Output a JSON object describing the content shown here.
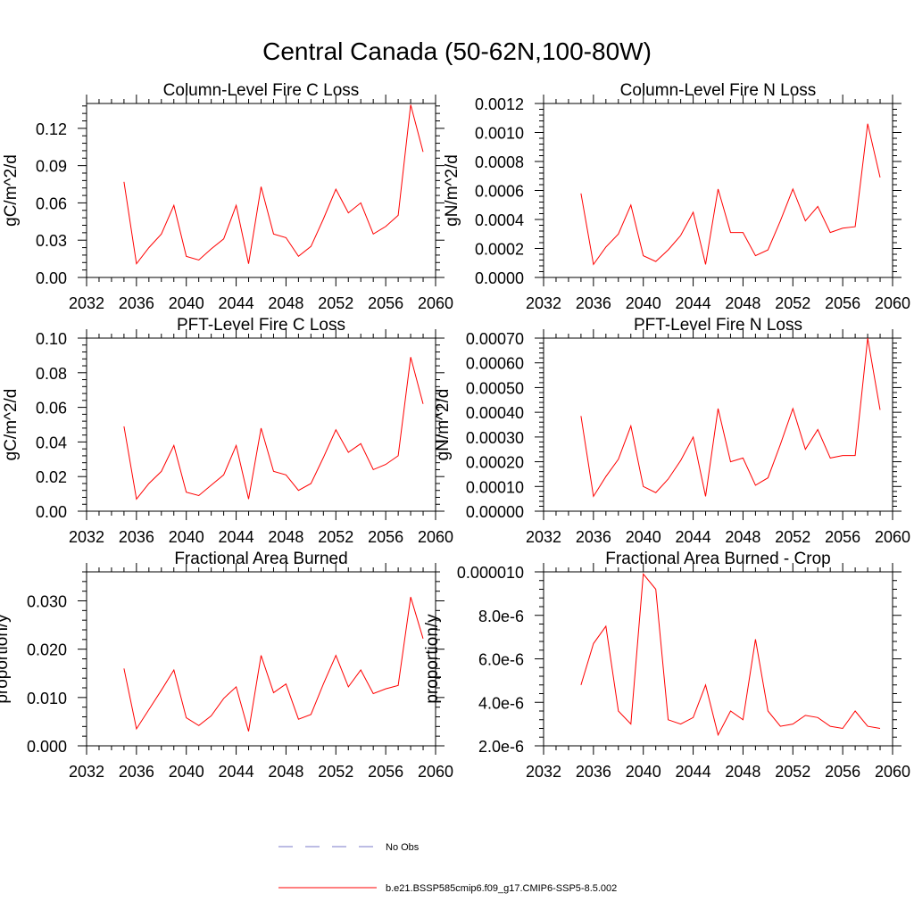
{
  "figure": {
    "title": "Central Canada (50-62N,100-80W)"
  },
  "series_color": "#ff0000",
  "legend": {
    "items": [
      {
        "label": "No Obs",
        "color": "#7878c8",
        "dash": "dashed"
      },
      {
        "label": "b.e21.BSSP585cmip6.f09_g17.CMIP6-SSP5-8.5.002",
        "color": "#ff0000",
        "dash": "solid"
      }
    ]
  },
  "chart_data": [
    {
      "type": "line",
      "title": "Column-Level Fire C Loss",
      "ylabel": "gC/m^2/d",
      "xlim": [
        2032,
        2060
      ],
      "ylim": [
        0,
        0.14
      ],
      "x_ticks": [
        "2032",
        "2036",
        "2040",
        "2044",
        "2048",
        "2052",
        "2056",
        "2060"
      ],
      "y_ticks": [
        {
          "v": 0,
          "label": "0.00"
        },
        {
          "v": 0.03,
          "label": "0.03"
        },
        {
          "v": 0.06,
          "label": "0.06"
        },
        {
          "v": 0.09,
          "label": "0.09"
        },
        {
          "v": 0.12,
          "label": "0.12"
        }
      ],
      "x": [
        2035,
        2036,
        2037,
        2038,
        2039,
        2040,
        2041,
        2042,
        2043,
        2044,
        2045,
        2046,
        2047,
        2048,
        2049,
        2050,
        2051,
        2052,
        2053,
        2054,
        2055,
        2056,
        2057,
        2058,
        2059
      ],
      "series": [
        {
          "values": [
            0.077,
            0.011,
            0.024,
            0.035,
            0.058,
            0.017,
            0.014,
            0.023,
            0.031,
            0.058,
            0.011,
            0.073,
            0.035,
            0.032,
            0.017,
            0.025,
            0.047,
            0.071,
            0.052,
            0.06,
            0.035,
            0.041,
            0.05,
            0.139,
            0.101
          ]
        }
      ]
    },
    {
      "type": "line",
      "title": "Column-Level Fire N Loss",
      "ylabel": "gN/m^2/d",
      "xlim": [
        2032,
        2060
      ],
      "ylim": [
        0,
        0.0012
      ],
      "x_ticks": [
        "2032",
        "2036",
        "2040",
        "2044",
        "2048",
        "2052",
        "2056",
        "2060"
      ],
      "y_ticks": [
        {
          "v": 0,
          "label": "0.0000"
        },
        {
          "v": 0.0002,
          "label": "0.0002"
        },
        {
          "v": 0.0004,
          "label": "0.0004"
        },
        {
          "v": 0.0006,
          "label": "0.0006"
        },
        {
          "v": 0.0008,
          "label": "0.0008"
        },
        {
          "v": 0.001,
          "label": "0.0010"
        },
        {
          "v": 0.0012,
          "label": "0.0012"
        }
      ],
      "x": [
        2035,
        2036,
        2037,
        2038,
        2039,
        2040,
        2041,
        2042,
        2043,
        2044,
        2045,
        2046,
        2047,
        2048,
        2049,
        2050,
        2051,
        2052,
        2053,
        2054,
        2055,
        2056,
        2057,
        2058,
        2059
      ],
      "series": [
        {
          "values": [
            0.00058,
            9e-05,
            0.00021,
            0.0003,
            0.0005,
            0.00015,
            0.00011,
            0.00019,
            0.00029,
            0.00045,
            9e-05,
            0.00061,
            0.00031,
            0.00031,
            0.00015,
            0.00019,
            0.00039,
            0.00061,
            0.00039,
            0.00049,
            0.00031,
            0.00034,
            0.00035,
            0.00106,
            0.00069
          ]
        }
      ]
    },
    {
      "type": "line",
      "title": "PFT-Level Fire C Loss",
      "ylabel": "gC/m^2/d",
      "xlim": [
        2032,
        2060
      ],
      "ylim": [
        0,
        0.1
      ],
      "x_ticks": [
        "2032",
        "2036",
        "2040",
        "2044",
        "2048",
        "2052",
        "2056",
        "2060"
      ],
      "y_ticks": [
        {
          "v": 0,
          "label": "0.00"
        },
        {
          "v": 0.02,
          "label": "0.02"
        },
        {
          "v": 0.04,
          "label": "0.04"
        },
        {
          "v": 0.06,
          "label": "0.06"
        },
        {
          "v": 0.08,
          "label": "0.08"
        },
        {
          "v": 0.1,
          "label": "0.10"
        }
      ],
      "x": [
        2035,
        2036,
        2037,
        2038,
        2039,
        2040,
        2041,
        2042,
        2043,
        2044,
        2045,
        2046,
        2047,
        2048,
        2049,
        2050,
        2051,
        2052,
        2053,
        2054,
        2055,
        2056,
        2057,
        2058,
        2059
      ],
      "series": [
        {
          "values": [
            0.049,
            0.007,
            0.016,
            0.023,
            0.038,
            0.011,
            0.009,
            0.015,
            0.021,
            0.038,
            0.007,
            0.048,
            0.023,
            0.021,
            0.012,
            0.016,
            0.031,
            0.047,
            0.034,
            0.039,
            0.024,
            0.027,
            0.032,
            0.089,
            0.062
          ]
        }
      ]
    },
    {
      "type": "line",
      "title": "PFT-Level Fire N Loss",
      "ylabel": "gN/m^2/d",
      "xlim": [
        2032,
        2060
      ],
      "ylim": [
        0,
        0.0007
      ],
      "x_ticks": [
        "2032",
        "2036",
        "2040",
        "2044",
        "2048",
        "2052",
        "2056",
        "2060"
      ],
      "y_ticks": [
        {
          "v": 0,
          "label": "0.00000"
        },
        {
          "v": 0.0001,
          "label": "0.00010"
        },
        {
          "v": 0.0002,
          "label": "0.00020"
        },
        {
          "v": 0.0003,
          "label": "0.00030"
        },
        {
          "v": 0.0004,
          "label": "0.00040"
        },
        {
          "v": 0.0005,
          "label": "0.00050"
        },
        {
          "v": 0.0006,
          "label": "0.00060"
        },
        {
          "v": 0.0007,
          "label": "0.00070"
        }
      ],
      "x": [
        2035,
        2036,
        2037,
        2038,
        2039,
        2040,
        2041,
        2042,
        2043,
        2044,
        2045,
        2046,
        2047,
        2048,
        2049,
        2050,
        2051,
        2052,
        2053,
        2054,
        2055,
        2056,
        2057,
        2058,
        2059
      ],
      "series": [
        {
          "values": [
            0.000385,
            6e-05,
            0.00014,
            0.00021,
            0.000345,
            0.0001,
            7.5e-05,
            0.00013,
            0.000205,
            0.0003,
            6e-05,
            0.000415,
            0.0002,
            0.000215,
            0.000105,
            0.000135,
            0.00027,
            0.000415,
            0.00025,
            0.00033,
            0.000215,
            0.000225,
            0.000225,
            0.0007,
            0.00041
          ]
        }
      ]
    },
    {
      "type": "line",
      "title": "Fractional Area Burned",
      "ylabel": "proportion/y",
      "xlim": [
        2032,
        2060
      ],
      "ylim": [
        0,
        0.036
      ],
      "x_ticks": [
        "2032",
        "2036",
        "2040",
        "2044",
        "2048",
        "2052",
        "2056",
        "2060"
      ],
      "y_ticks": [
        {
          "v": 0,
          "label": "0.000"
        },
        {
          "v": 0.01,
          "label": "0.010"
        },
        {
          "v": 0.02,
          "label": "0.020"
        },
        {
          "v": 0.03,
          "label": "0.030"
        }
      ],
      "x": [
        2035,
        2036,
        2037,
        2038,
        2039,
        2040,
        2041,
        2042,
        2043,
        2044,
        2045,
        2046,
        2047,
        2048,
        2049,
        2050,
        2051,
        2052,
        2053,
        2054,
        2055,
        2056,
        2057,
        2058,
        2059
      ],
      "series": [
        {
          "values": [
            0.016,
            0.0035,
            0.0075,
            0.0115,
            0.0157,
            0.0058,
            0.0042,
            0.0062,
            0.0098,
            0.0122,
            0.003,
            0.0187,
            0.011,
            0.0128,
            0.0055,
            0.0065,
            0.0128,
            0.0187,
            0.0122,
            0.0157,
            0.0108,
            0.0118,
            0.0125,
            0.0308,
            0.0222
          ]
        }
      ]
    },
    {
      "type": "line",
      "title": "Fractional Area Burned - Crop",
      "ylabel": "proportion/y",
      "xlim": [
        2032,
        2060
      ],
      "ylim": [
        2e-06,
        1e-05
      ],
      "x_ticks": [
        "2032",
        "2036",
        "2040",
        "2044",
        "2048",
        "2052",
        "2056",
        "2060"
      ],
      "y_ticks": [
        {
          "v": 2e-06,
          "label": "2.0e-6"
        },
        {
          "v": 4e-06,
          "label": "4.0e-6"
        },
        {
          "v": 6e-06,
          "label": "6.0e-6"
        },
        {
          "v": 8e-06,
          "label": "8.0e-6"
        },
        {
          "v": 1e-05,
          "label": "0.000010"
        }
      ],
      "x": [
        2035,
        2036,
        2037,
        2038,
        2039,
        2040,
        2041,
        2042,
        2043,
        2044,
        2045,
        2046,
        2047,
        2048,
        2049,
        2050,
        2051,
        2052,
        2053,
        2054,
        2055,
        2056,
        2057,
        2058,
        2059
      ],
      "series": [
        {
          "values": [
            4.8e-06,
            6.7e-06,
            7.5e-06,
            3.6e-06,
            3e-06,
            9.9e-06,
            9.2e-06,
            3.2e-06,
            3e-06,
            3.3e-06,
            4.8e-06,
            2.5e-06,
            3.6e-06,
            3.2e-06,
            6.9e-06,
            3.6e-06,
            2.9e-06,
            3e-06,
            3.4e-06,
            3.3e-06,
            2.9e-06,
            2.8e-06,
            3.6e-06,
            2.9e-06,
            2.8e-06
          ]
        }
      ]
    }
  ]
}
